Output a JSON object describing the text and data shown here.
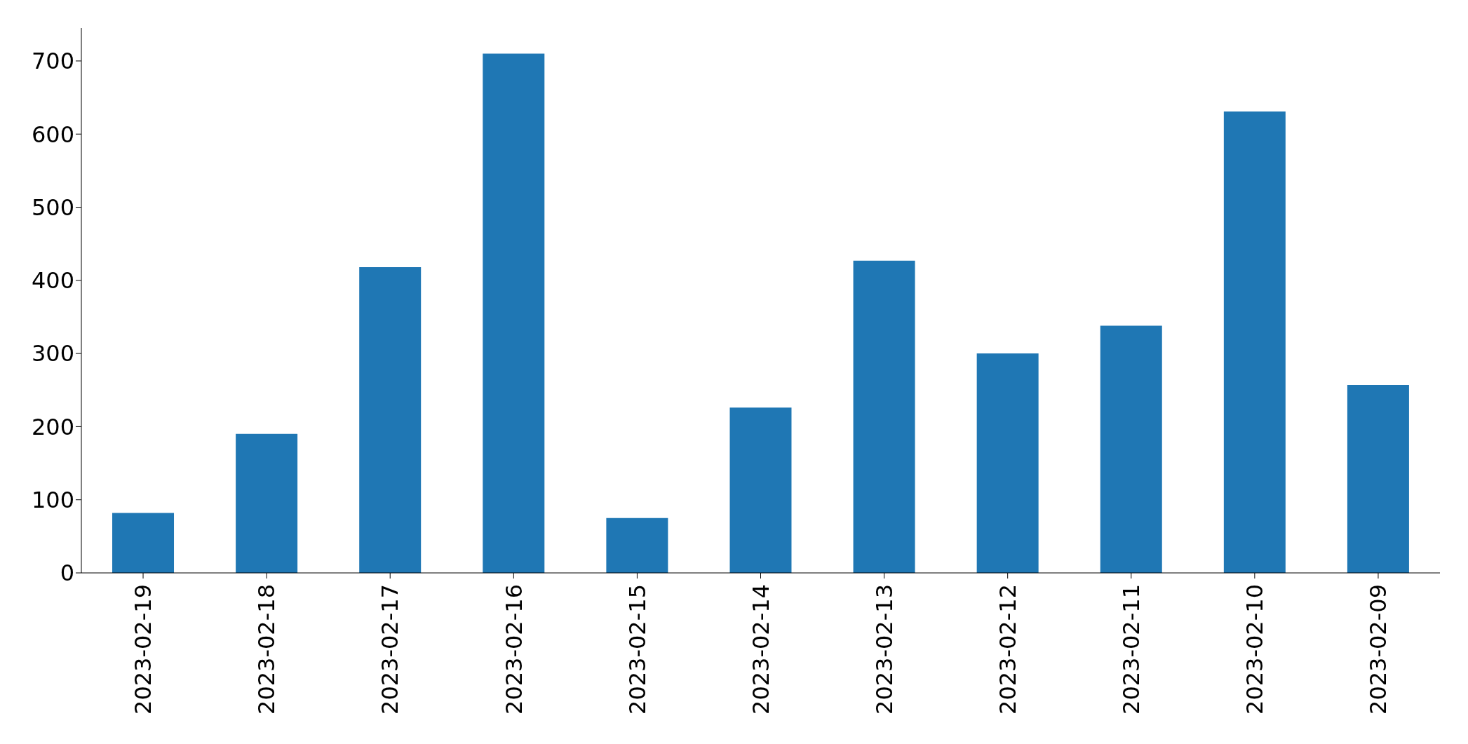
{
  "chart_data": {
    "type": "bar",
    "categories": [
      "2023-02-19",
      "2023-02-18",
      "2023-02-17",
      "2023-02-16",
      "2023-02-15",
      "2023-02-14",
      "2023-02-13",
      "2023-02-12",
      "2023-02-11",
      "2023-02-10",
      "2023-02-09"
    ],
    "values": [
      82,
      190,
      418,
      710,
      75,
      226,
      427,
      300,
      338,
      631,
      257
    ],
    "color": "#1f77b4",
    "ylim": [
      0,
      745
    ],
    "yticks": [
      0,
      100,
      200,
      300,
      400,
      500,
      600,
      700
    ],
    "grid": false,
    "legend": false
  }
}
